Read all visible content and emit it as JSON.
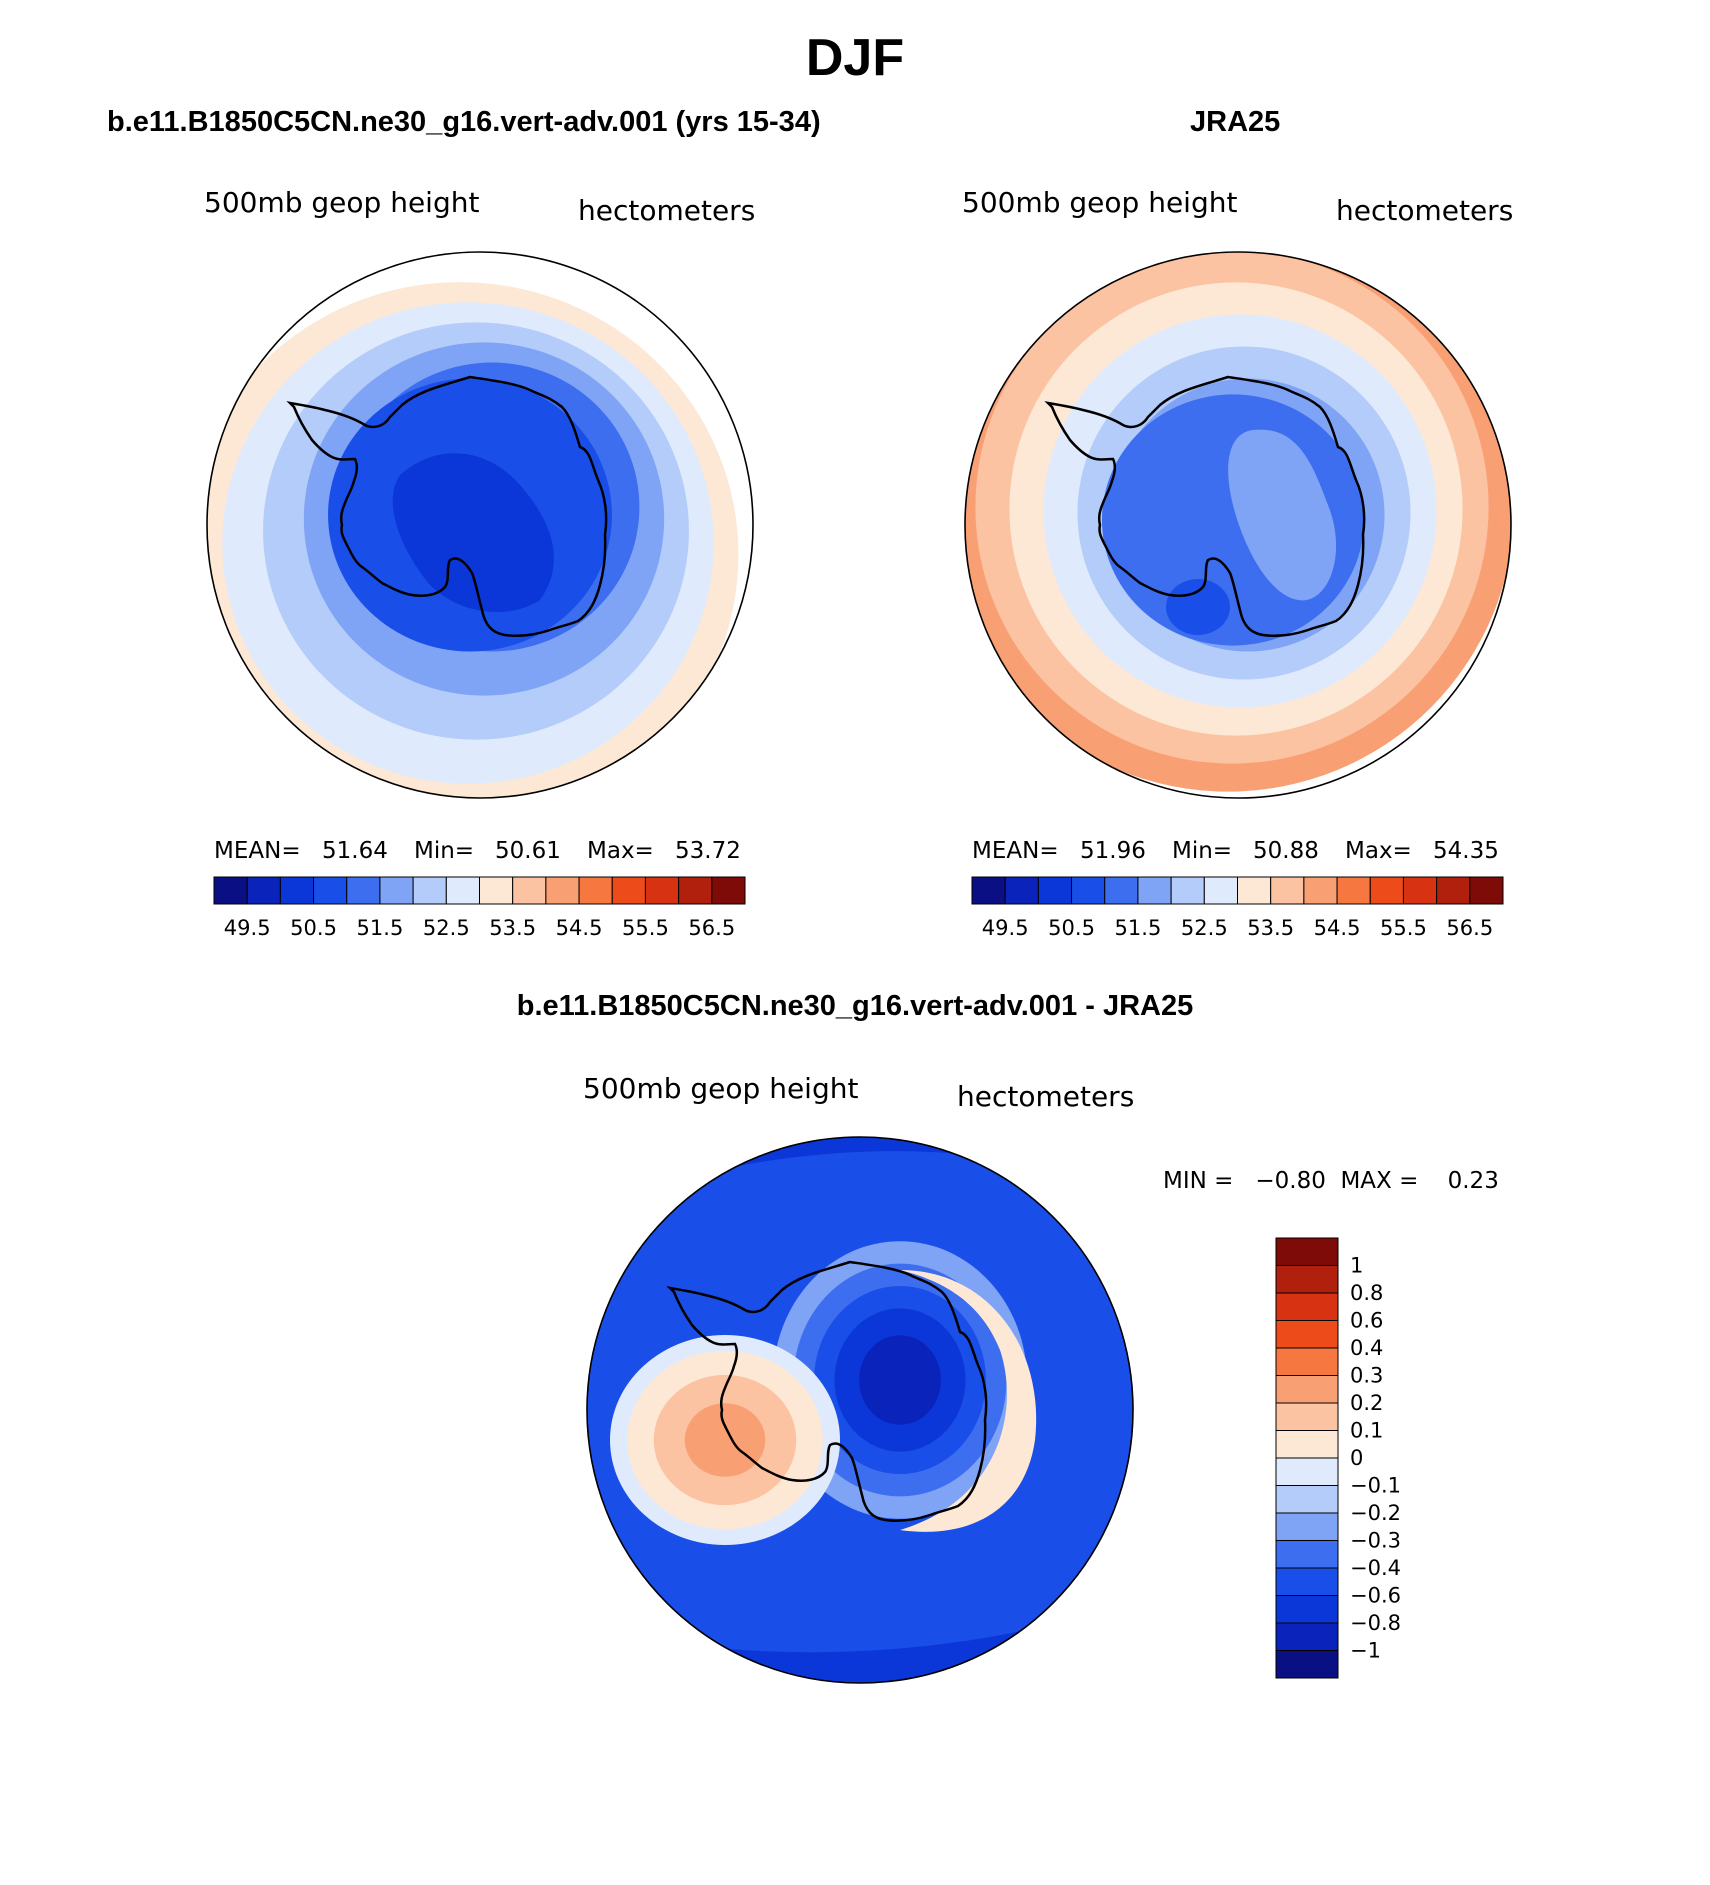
{
  "figure": {
    "title": "DJF"
  },
  "panels": {
    "model": {
      "title": "b.e11.B1850C5CN.ne30_g16.vert-adv.001 (yrs 15-34)",
      "variable": "500mb geop height",
      "units": "hectometers",
      "mean_label": "MEAN=",
      "mean": "51.64",
      "min_label": "Min=",
      "min": "50.61",
      "max_label": "Max=",
      "max": "53.72"
    },
    "obs": {
      "title": "JRA25",
      "variable": "500mb geop height",
      "units": "hectometers",
      "mean_label": "MEAN=",
      "mean": "51.96",
      "min_label": "Min=",
      "min": "50.88",
      "max_label": "Max=",
      "max": "54.35"
    },
    "diff": {
      "title": "b.e11.B1850C5CN.ne30_g16.vert-adv.001 - JRA25",
      "variable": "500mb geop height",
      "units": "hectometers",
      "range_text": "MIN =   −0.80  MAX =    0.23"
    }
  },
  "colorbars": {
    "abs": {
      "colors": [
        "#0b0f84",
        "#0a23bb",
        "#0c37d8",
        "#1a4ee8",
        "#3d6ef0",
        "#80a4f5",
        "#b4ccf9",
        "#dfeafc",
        "#fde8d5",
        "#fbc3a1",
        "#f99f74",
        "#f6773f",
        "#ee4b1a",
        "#d73211",
        "#b1200d",
        "#7e0b07"
      ],
      "labels": [
        "49.5",
        "50.5",
        "51.5",
        "52.5",
        "53.5",
        "54.5",
        "55.5",
        "56.5"
      ]
    },
    "diff": {
      "colors": [
        "#0b0f84",
        "#0a23bb",
        "#0c37d8",
        "#1a4ee8",
        "#3d6ef0",
        "#80a4f5",
        "#b4ccf9",
        "#dfeafc",
        "#fde8d5",
        "#fbc3a1",
        "#f99f74",
        "#f6773f",
        "#ee4b1a",
        "#d73211",
        "#b1200d",
        "#7e0b07"
      ],
      "labels": [
        "−1",
        "−0.8",
        "−0.6",
        "−0.4",
        "−0.3",
        "−0.2",
        "−0.1",
        "0",
        "0.1",
        "0.2",
        "0.3",
        "0.4",
        "0.6",
        "0.8",
        "1"
      ]
    }
  },
  "fields": {
    "model": {
      "rings": [
        "#fde8d5",
        "#dfeafc",
        "#b4ccf9",
        "#80a4f5",
        "#3d6ef0"
      ],
      "inner": "#1a4ee8",
      "core": "#0c37d8"
    },
    "obs": {
      "rings": [
        "#f99f74",
        "#fbc3a1",
        "#fde8d5",
        "#dfeafc",
        "#b4ccf9",
        "#80a4f5"
      ],
      "inner": "#3d6ef0",
      "core": "#80a4f5",
      "low": "#1a4ee8"
    },
    "diff": {
      "background": "#1a4ee8",
      "rim": "#0c37d8"
    }
  }
}
